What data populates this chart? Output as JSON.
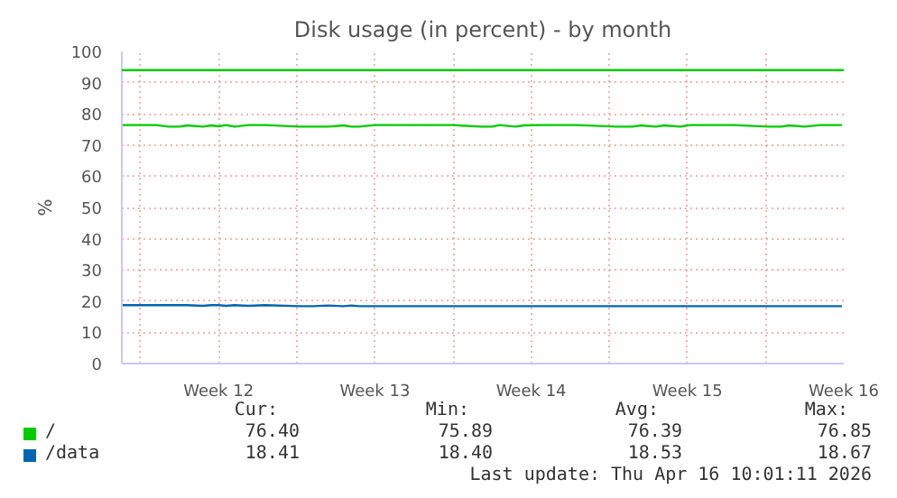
{
  "chart_data": {
    "type": "line",
    "title": "Disk usage (in percent) - by month",
    "ylabel": "%",
    "x": [
      "2026-03-15T04:00",
      "2026-03-16T17:00",
      "2026-03-17T06:00",
      "2026-03-17T18:00",
      "2026-03-18T02:00",
      "2026-03-18T19:00",
      "2026-03-19T04:00",
      "2026-03-19T12:00",
      "2026-03-19T20:00",
      "2026-03-20T05:00",
      "2026-03-20T20:00",
      "2026-03-21T14:00",
      "2026-03-23T03:00",
      "2026-03-23T17:00",
      "2026-03-24T10:00",
      "2026-03-25T02:00",
      "2026-03-25T11:00",
      "2026-03-25T19:00",
      "2026-03-26T12:00",
      "2026-03-27T05:00",
      "2026-03-28T14:00",
      "2026-03-30T00:00",
      "2026-03-31T06:00",
      "2026-03-31T18:00",
      "2026-04-01T02:00",
      "2026-04-01T19:00",
      "2026-04-02T04:00",
      "2026-04-02T22:00",
      "2026-04-04T14:00",
      "2026-04-06T07:00",
      "2026-04-07T01:00",
      "2026-04-07T10:00",
      "2026-04-08T02:00",
      "2026-04-08T11:00",
      "2026-04-09T04:00",
      "2026-04-09T15:00",
      "2026-04-11T14:00",
      "2026-04-13T03:00",
      "2026-04-13T17:00",
      "2026-04-14T01:00",
      "2026-04-14T18:00",
      "2026-04-15T11:00",
      "2026-04-15T22:00",
      "2026-04-16T10:00"
    ],
    "series": [
      {
        "name": "/",
        "color": "#00cc00",
        "values": [
          76.4,
          76.4,
          75.9,
          75.9,
          76.3,
          75.9,
          76.3,
          76.0,
          76.4,
          75.9,
          76.4,
          76.4,
          75.9,
          75.9,
          75.9,
          76.3,
          75.9,
          75.9,
          76.4,
          76.4,
          76.4,
          76.4,
          75.9,
          75.9,
          76.4,
          75.9,
          76.3,
          76.4,
          76.4,
          75.9,
          75.9,
          76.3,
          75.9,
          76.3,
          75.9,
          76.4,
          76.4,
          75.9,
          75.9,
          76.3,
          75.9,
          76.4,
          76.4,
          76.4
        ]
      },
      {
        "name": "/data",
        "color": "#0066b3",
        "values": [
          18.7,
          18.7,
          18.7,
          18.7,
          18.7,
          18.5,
          18.7,
          18.7,
          18.5,
          18.7,
          18.5,
          18.7,
          18.4,
          18.4,
          18.6,
          18.4,
          18.6,
          18.4,
          18.4,
          18.4,
          18.4,
          18.4,
          18.4,
          18.4,
          18.4,
          18.4,
          18.4,
          18.4,
          18.4,
          18.4,
          18.4,
          18.4,
          18.4,
          18.4,
          18.4,
          18.4,
          18.4,
          18.4,
          18.4,
          18.4,
          18.4,
          18.4,
          18.4,
          18.4
        ]
      }
    ],
    "xlim": [
      "2026-03-15T04:00",
      "2026-04-16T12:00"
    ],
    "ylim": [
      0,
      100
    ],
    "xticks": [
      {
        "value": "2026-03-16",
        "label": null
      },
      {
        "value": "2026-03-19T12:00",
        "label": "Week 12"
      },
      {
        "value": "2026-03-23",
        "label": null
      },
      {
        "value": "2026-03-26T12:00",
        "label": "Week 13"
      },
      {
        "value": "2026-03-30",
        "label": null
      },
      {
        "value": "2026-04-02T12:00",
        "label": "Week 14"
      },
      {
        "value": "2026-04-06",
        "label": null
      },
      {
        "value": "2026-04-09T12:00",
        "label": "Week 15"
      },
      {
        "value": "2026-04-13",
        "label": null
      },
      {
        "value": "2026-04-16T12:00",
        "label": "Week 16"
      }
    ],
    "yticks": [
      0,
      10,
      20,
      30,
      40,
      50,
      60,
      70,
      80,
      90,
      100
    ],
    "ref_lines": [
      {
        "axis": "y",
        "value": 94,
        "color": "#00cc00"
      }
    ],
    "grid": true,
    "legend": "bottom",
    "annotations": [
      "Cur:",
      "Min:",
      "Avg:",
      "Max:",
      "76.40",
      "75.89",
      "76.39",
      "76.85",
      "18.41",
      "18.40",
      "18.53",
      "18.67",
      "Last update: Thu Apr 16 10:01:11 2026"
    ]
  }
}
